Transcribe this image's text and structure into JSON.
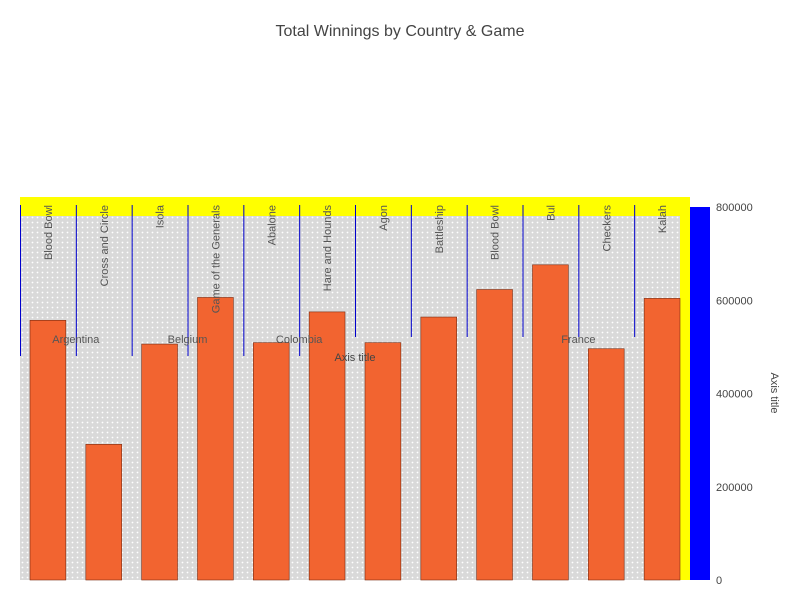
{
  "chart_data": {
    "type": "bar",
    "title": "Total Winnings by Country & Game",
    "categories": [
      "Blood Bowl",
      "Cross and Circle",
      "Isola",
      "Game of the Generals",
      "Abalone",
      "Hare and Hounds",
      "Agon",
      "Battleship",
      "Blood Bowl",
      "Bul",
      "Checkers",
      "Kalah"
    ],
    "groups": [
      {
        "label": "Argentina",
        "span": [
          0,
          1
        ]
      },
      {
        "label": "Belgium",
        "span": [
          2,
          3
        ]
      },
      {
        "label": "Colombia",
        "span": [
          4,
          5
        ]
      },
      {
        "label": "France",
        "span": [
          8,
          11
        ]
      }
    ],
    "xlabel": "Axis title",
    "series": [
      {
        "values": [
          557000,
          291000,
          506000,
          606000,
          509000,
          575000,
          509000,
          564000,
          623000,
          676000,
          496000,
          604000
        ]
      }
    ],
    "ylabel": "Axis title",
    "ylim": [
      0,
      800000
    ],
    "yticks": [
      0,
      200000,
      400000,
      600000,
      800000
    ],
    "grid": true,
    "colors": {
      "bar": "#f26430",
      "bar_stroke": "#7a2a10",
      "plot_bg": "#d9d9d9",
      "label_band": "#ffff00",
      "axis_band": "#0000ff",
      "separator": "#0000cc"
    }
  }
}
